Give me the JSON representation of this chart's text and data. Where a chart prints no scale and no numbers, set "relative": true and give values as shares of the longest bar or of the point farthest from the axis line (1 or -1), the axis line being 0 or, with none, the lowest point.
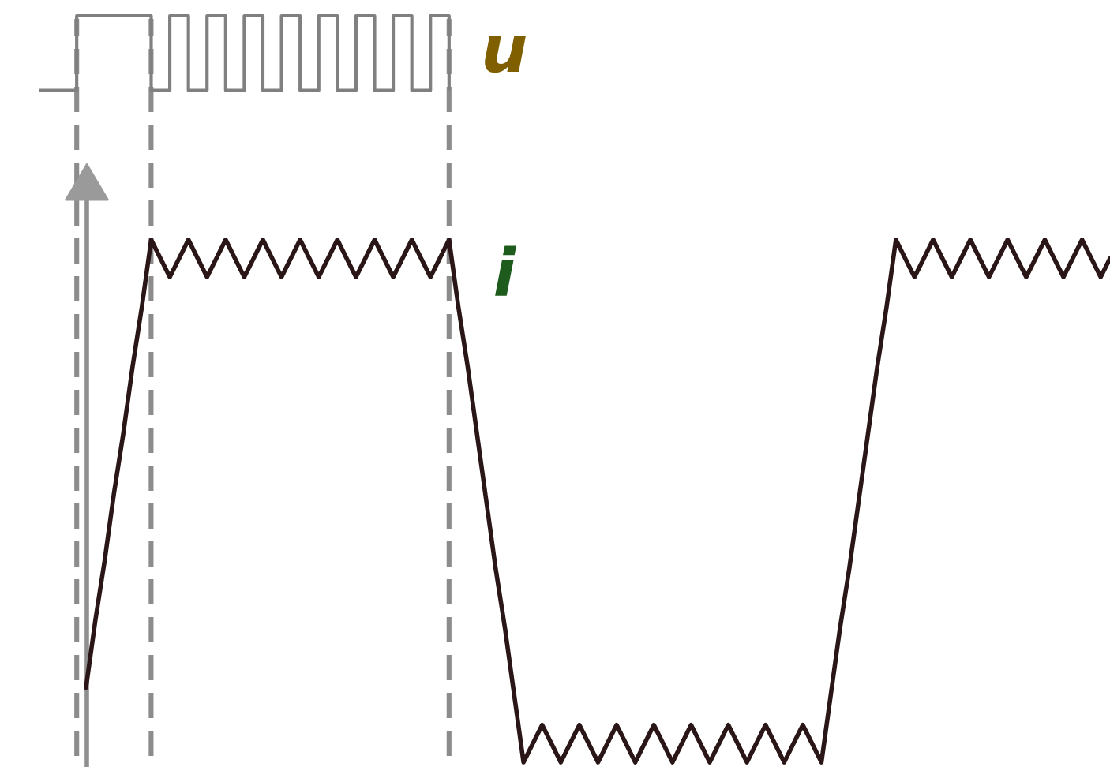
{
  "chart_data": {
    "type": "line",
    "relative": true,
    "legend": false,
    "grid": "x",
    "categories": [
      null,
      null,
      null,
      null,
      null,
      null,
      null,
      null,
      null,
      null,
      null,
      null,
      null,
      null,
      null,
      null,
      null,
      null,
      null,
      null,
      null,
      null,
      null,
      null,
      null,
      null,
      null,
      null,
      null,
      null,
      null,
      null,
      null,
      null,
      null,
      null,
      null,
      null,
      null,
      null,
      null,
      null,
      null,
      null,
      null,
      null,
      null,
      null,
      null,
      null,
      null,
      null,
      null,
      null,
      null,
      null,
      null,
      null,
      null,
      null,
      null,
      null,
      null,
      null,
      null,
      null,
      null,
      null,
      null,
      null,
      null,
      null,
      null,
      null,
      null,
      null,
      null,
      null,
      null,
      null,
      null,
      null,
      null,
      null,
      null,
      null,
      null,
      null,
      null,
      null,
      null,
      null,
      null,
      null,
      null,
      null,
      null,
      null,
      null,
      null,
      null,
      null,
      null,
      null,
      null,
      null,
      null,
      null,
      null,
      null,
      null,
      null,
      null,
      null,
      null,
      null
    ],
    "series": [
      {
        "name": "u",
        "type": "step",
        "color": "#808080",
        "values": [
          0.9,
          0.9,
          0.9,
          0.9,
          1,
          1,
          1,
          1,
          1,
          1,
          1,
          1,
          0.9,
          0.9,
          1,
          1,
          0.9,
          0.9,
          1,
          1,
          0.9,
          0.9,
          1,
          1,
          0.9,
          0.9,
          1,
          1,
          0.9,
          0.9,
          1,
          1,
          0.9,
          0.9,
          1,
          1,
          0.9,
          0.9,
          1,
          1,
          0.9,
          0.9,
          1,
          1,
          0.9,
          null,
          null,
          null,
          null,
          null,
          null,
          null,
          null,
          null,
          null,
          null,
          null,
          null,
          null,
          null,
          null,
          null,
          null,
          null,
          null,
          null,
          null,
          null,
          null,
          null,
          null,
          null,
          null,
          null,
          null,
          null,
          null,
          null,
          null,
          null,
          null,
          null,
          null,
          null,
          null,
          null,
          null,
          null,
          null,
          null,
          null,
          null,
          null,
          null,
          null,
          null,
          null,
          null,
          null,
          null,
          null,
          null,
          null,
          null,
          null,
          null,
          null,
          null,
          null,
          null,
          null,
          null,
          null,
          null,
          null,
          null
        ]
      },
      {
        "name": "i",
        "color": "#2a1616",
        "values": [
          null,
          null,
          null,
          null,
          null,
          0.1,
          0.19,
          0.27,
          0.36,
          0.44,
          0.53,
          0.61,
          0.7,
          0.675,
          0.65,
          0.675,
          0.7,
          0.675,
          0.65,
          0.675,
          0.7,
          0.675,
          0.65,
          0.675,
          0.7,
          0.675,
          0.65,
          0.675,
          0.7,
          0.675,
          0.65,
          0.675,
          0.7,
          0.675,
          0.65,
          0.675,
          0.7,
          0.675,
          0.65,
          0.675,
          0.7,
          0.675,
          0.65,
          0.675,
          0.7,
          0.61,
          0.53,
          0.44,
          0.35,
          0.26,
          0.18,
          0.09,
          0,
          0.025,
          0.05,
          0.025,
          0,
          0.025,
          0.05,
          0.025,
          0,
          0.025,
          0.05,
          0.025,
          0,
          0.025,
          0.05,
          0.025,
          0,
          0.025,
          0.05,
          0.025,
          0,
          0.025,
          0.05,
          0.025,
          0,
          0.025,
          0.05,
          0.025,
          0,
          0.025,
          0.05,
          0.025,
          0,
          0.09,
          0.18,
          0.26,
          0.35,
          0.44,
          0.53,
          0.61,
          0.7,
          0.675,
          0.65,
          0.675,
          0.7,
          0.675,
          0.65,
          0.675,
          0.7,
          0.675,
          0.65,
          0.675,
          0.7,
          0.675,
          0.65,
          0.675,
          0.7,
          0.675,
          0.65,
          0.675,
          0.7,
          0.675,
          0.65,
          0.675
        ]
      }
    ]
  }
}
